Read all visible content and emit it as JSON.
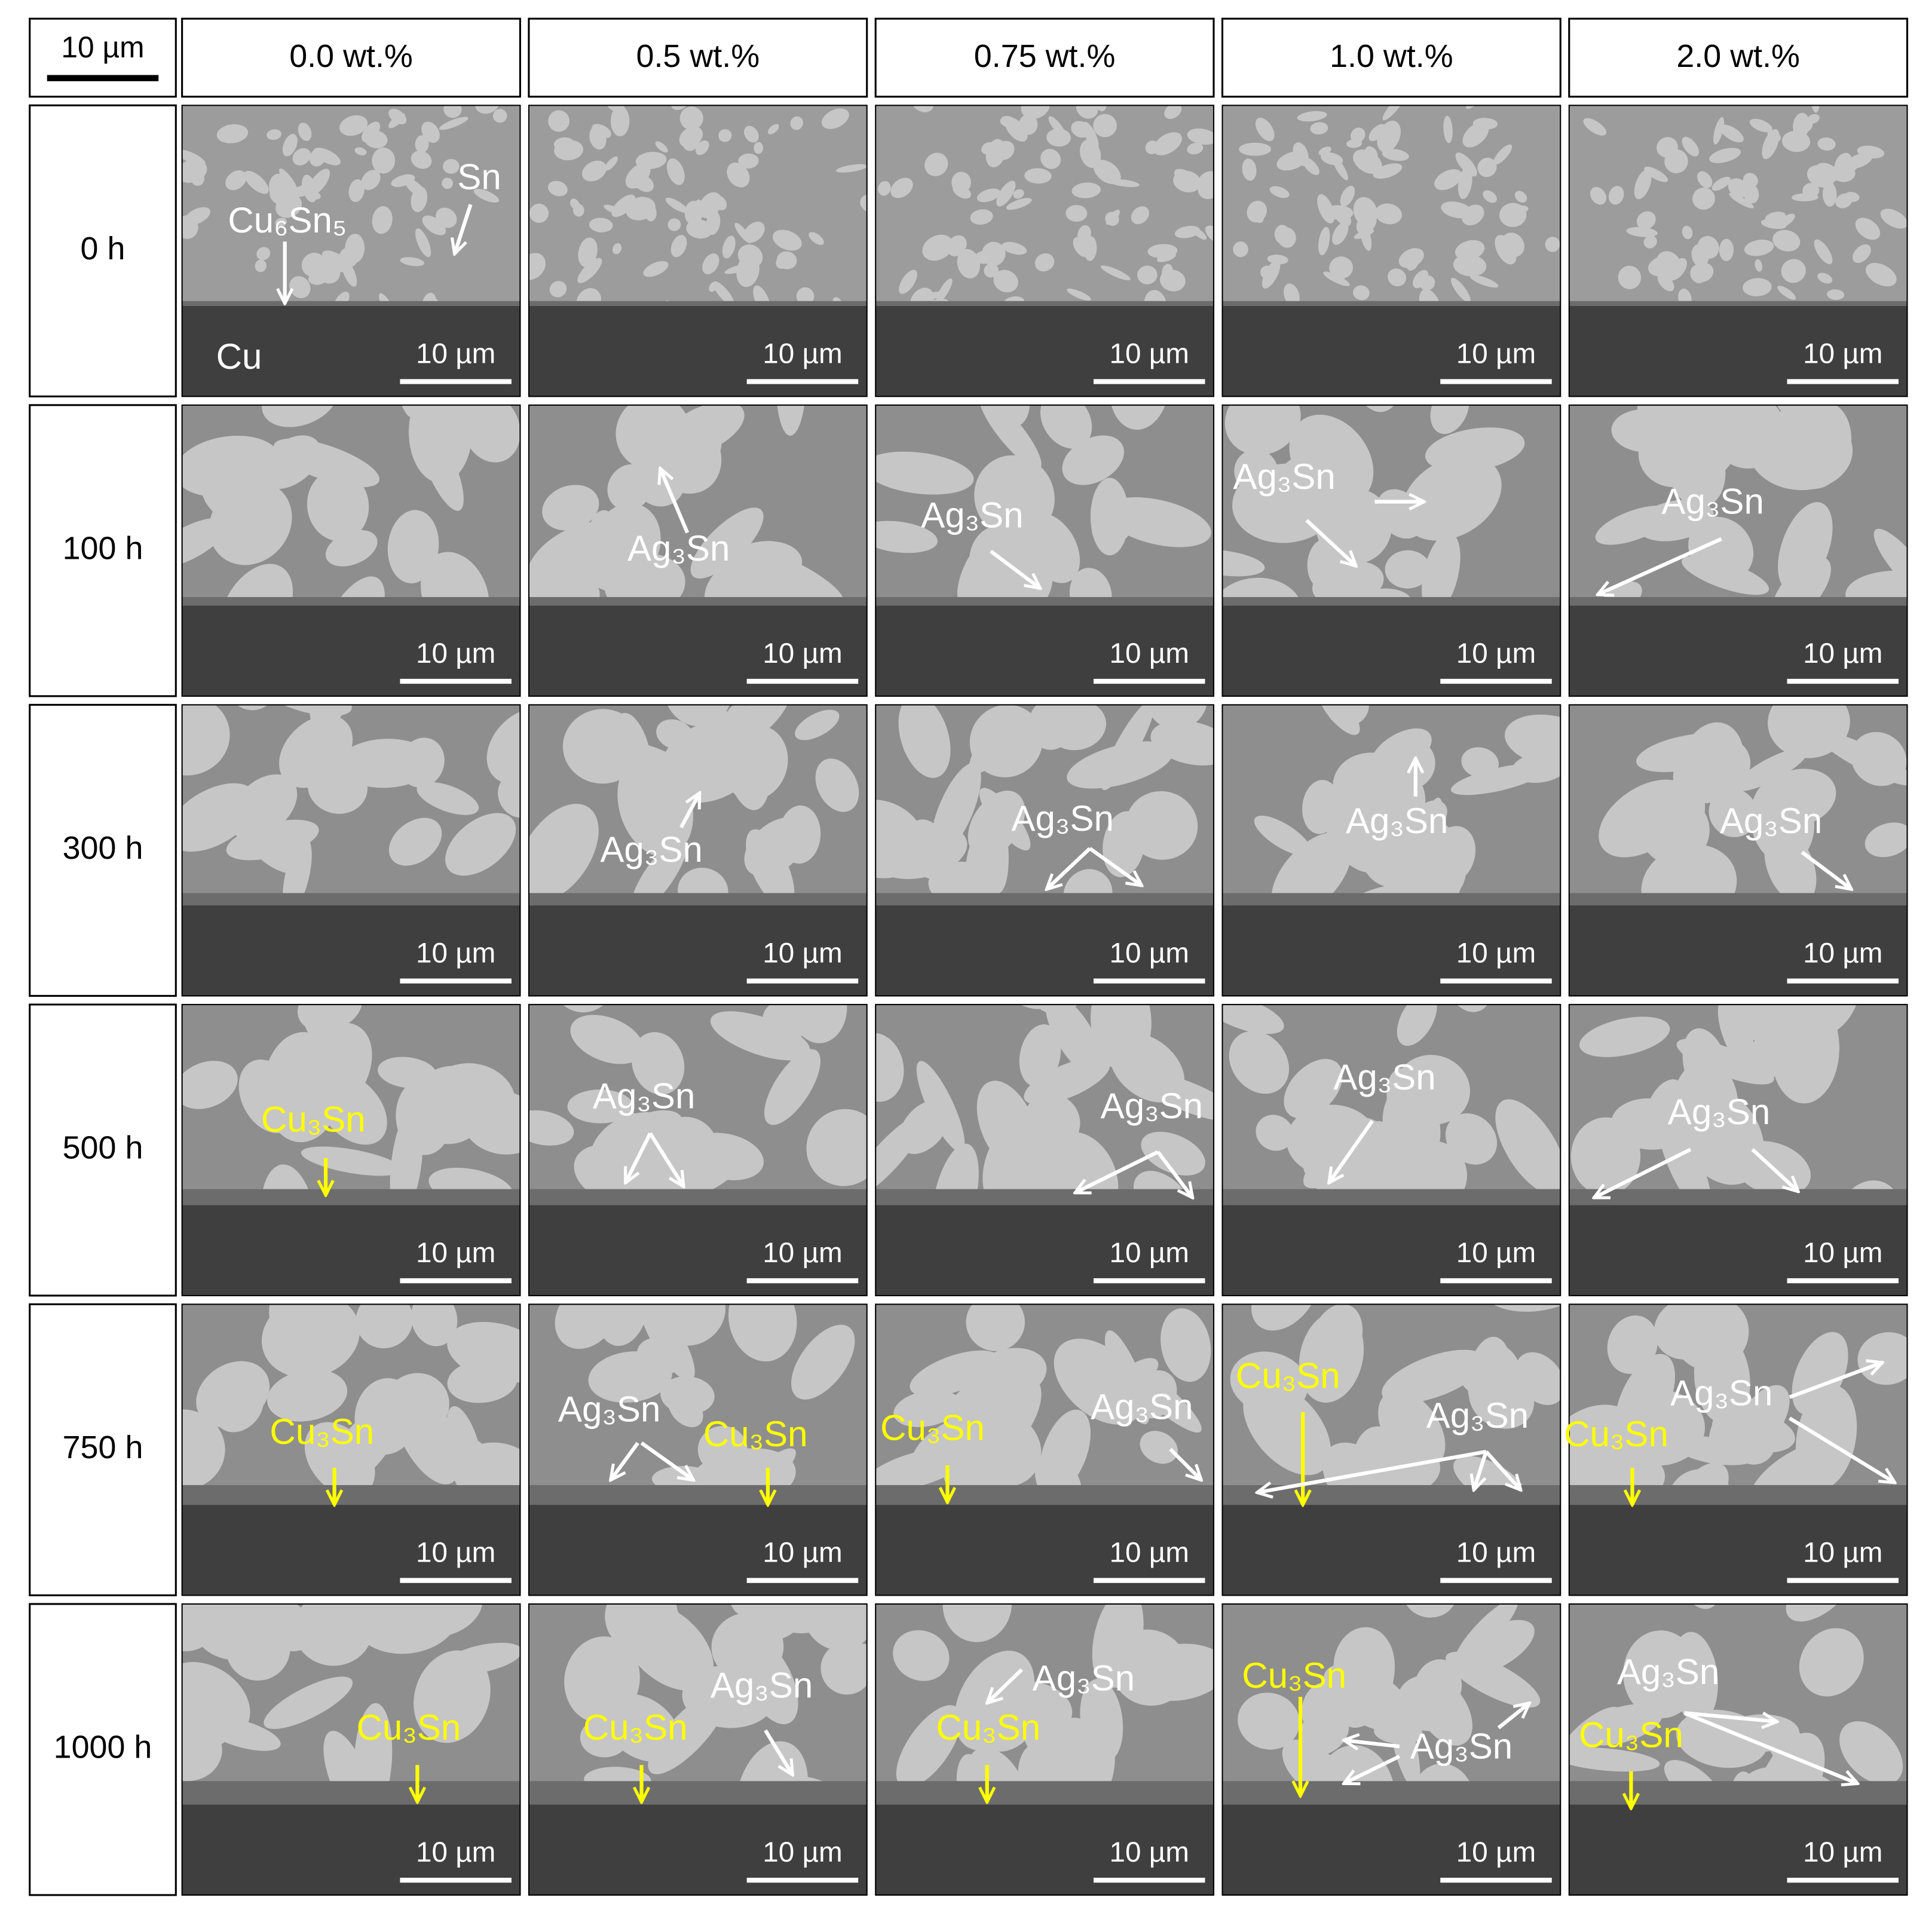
{
  "scale_label": "10 µm",
  "columns": [
    "0.0 wt.%",
    "0.5 wt.%",
    "0.75 wt.%",
    "1.0 wt.%",
    "2.0 wt.%"
  ],
  "rows": [
    {
      "label": "0 h",
      "cells": [
        {
          "scale_bar": "10 µm",
          "annotations": [
            {
              "text": "Cu₆Sn₅",
              "color": "#ffffff"
            },
            {
              "text": "Sn",
              "color": "#ffffff"
            },
            {
              "text": "Cu",
              "color": "#ffffff"
            }
          ]
        },
        {
          "scale_bar": "10 µm",
          "annotations": []
        },
        {
          "scale_bar": "10 µm",
          "annotations": []
        },
        {
          "scale_bar": "10 µm",
          "annotations": []
        },
        {
          "scale_bar": "10 µm",
          "annotations": []
        }
      ]
    },
    {
      "label": "100 h",
      "cells": [
        {
          "scale_bar": "10 µm",
          "annotations": []
        },
        {
          "scale_bar": "10 µm",
          "annotations": [
            {
              "text": "Ag₃Sn",
              "color": "#ffffff"
            }
          ]
        },
        {
          "scale_bar": "10 µm",
          "annotations": [
            {
              "text": "Ag₃Sn",
              "color": "#ffffff"
            }
          ]
        },
        {
          "scale_bar": "10 µm",
          "annotations": [
            {
              "text": "Ag₃Sn",
              "color": "#ffffff"
            }
          ]
        },
        {
          "scale_bar": "10 µm",
          "annotations": [
            {
              "text": "Ag₃Sn",
              "color": "#ffffff"
            }
          ]
        }
      ]
    },
    {
      "label": "300 h",
      "cells": [
        {
          "scale_bar": "10 µm",
          "annotations": []
        },
        {
          "scale_bar": "10 µm",
          "annotations": [
            {
              "text": "Ag₃Sn",
              "color": "#ffffff"
            }
          ]
        },
        {
          "scale_bar": "10 µm",
          "annotations": [
            {
              "text": "Ag₃Sn",
              "color": "#ffffff"
            }
          ]
        },
        {
          "scale_bar": "10 µm",
          "annotations": [
            {
              "text": "Ag₃Sn",
              "color": "#ffffff"
            }
          ]
        },
        {
          "scale_bar": "10 µm",
          "annotations": [
            {
              "text": "Ag₃Sn",
              "color": "#ffffff"
            }
          ]
        }
      ]
    },
    {
      "label": "500 h",
      "cells": [
        {
          "scale_bar": "10 µm",
          "annotations": [
            {
              "text": "Cu₃Sn",
              "color": "#ffff00"
            }
          ]
        },
        {
          "scale_bar": "10 µm",
          "annotations": [
            {
              "text": "Ag₃Sn",
              "color": "#ffffff"
            }
          ]
        },
        {
          "scale_bar": "10 µm",
          "annotations": [
            {
              "text": "Ag₃Sn",
              "color": "#ffffff"
            }
          ]
        },
        {
          "scale_bar": "10 µm",
          "annotations": [
            {
              "text": "Ag₃Sn",
              "color": "#ffffff"
            }
          ]
        },
        {
          "scale_bar": "10 µm",
          "annotations": [
            {
              "text": "Ag₃Sn",
              "color": "#ffffff"
            }
          ]
        }
      ]
    },
    {
      "label": "750 h",
      "cells": [
        {
          "scale_bar": "10 µm",
          "annotations": [
            {
              "text": "Cu₃Sn",
              "color": "#ffff00"
            }
          ]
        },
        {
          "scale_bar": "10 µm",
          "annotations": [
            {
              "text": "Ag₃Sn",
              "color": "#ffffff"
            },
            {
              "text": "Cu₃Sn",
              "color": "#ffff00"
            }
          ]
        },
        {
          "scale_bar": "10 µm",
          "annotations": [
            {
              "text": "Cu₃Sn",
              "color": "#ffff00"
            },
            {
              "text": "Ag₃Sn",
              "color": "#ffffff"
            }
          ]
        },
        {
          "scale_bar": "10 µm",
          "annotations": [
            {
              "text": "Cu₃Sn",
              "color": "#ffff00"
            },
            {
              "text": "Ag₃Sn",
              "color": "#ffffff"
            }
          ]
        },
        {
          "scale_bar": "10 µm",
          "annotations": [
            {
              "text": "Cu₃Sn",
              "color": "#ffff00"
            },
            {
              "text": "Ag₃Sn",
              "color": "#ffffff"
            }
          ]
        }
      ]
    },
    {
      "label": "1000 h",
      "cells": [
        {
          "scale_bar": "10 µm",
          "annotations": [
            {
              "text": "Cu₃Sn",
              "color": "#ffff00"
            }
          ]
        },
        {
          "scale_bar": "10 µm",
          "annotations": [
            {
              "text": "Cu₃Sn",
              "color": "#ffff00"
            },
            {
              "text": "Ag₃Sn",
              "color": "#ffffff"
            }
          ]
        },
        {
          "scale_bar": "10 µm",
          "annotations": [
            {
              "text": "Ag₃Sn",
              "color": "#ffffff"
            },
            {
              "text": "Cu₃Sn",
              "color": "#ffff00"
            }
          ]
        },
        {
          "scale_bar": "10 µm",
          "annotations": [
            {
              "text": "Cu₃Sn",
              "color": "#ffff00"
            },
            {
              "text": "Ag₃Sn",
              "color": "#ffffff"
            }
          ]
        },
        {
          "scale_bar": "10 µm",
          "annotations": [
            {
              "text": "Ag₃Sn",
              "color": "#ffffff"
            },
            {
              "text": "Cu₃Sn",
              "color": "#ffff00"
            }
          ]
        }
      ]
    }
  ]
}
